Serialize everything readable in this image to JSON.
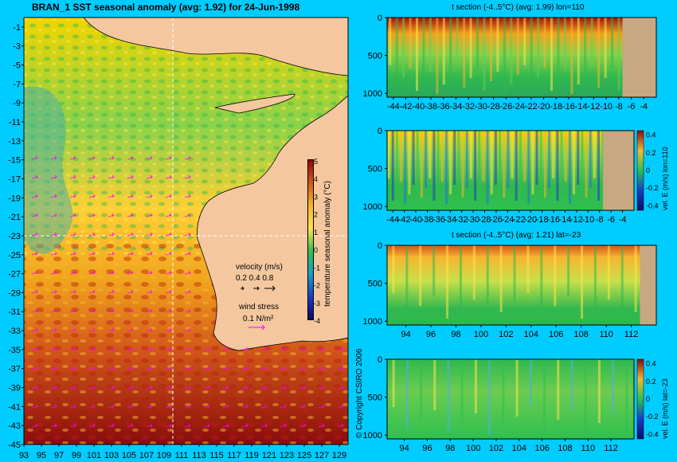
{
  "main_title": "BRAN_1 SST seasonal anomaly (avg: 1.92) for 24-Jun-1998",
  "copyright": "© Copyright CSIRO 2006",
  "colors": {
    "background": "#00ccff",
    "land": "#f4c79e",
    "ocean_mask": "#c8a882",
    "marker": "#ff00ff",
    "crosshair": "#ffffff"
  },
  "map": {
    "lat_labels": [
      "-1",
      "-3",
      "-5",
      "-7",
      "-9",
      "-11",
      "-13",
      "-15",
      "-17",
      "-19",
      "-21",
      "-23",
      "-25",
      "-27",
      "-29",
      "-31",
      "-33",
      "-35",
      "-37",
      "-39",
      "-41",
      "-43",
      "-45"
    ],
    "lon_labels": [
      "93",
      "95",
      "97",
      "99",
      "101",
      "103",
      "105",
      "107",
      "109",
      "111",
      "113",
      "115",
      "117",
      "119",
      "121",
      "123",
      "125",
      "127",
      "129"
    ],
    "colorbar_ticks": [
      "5",
      "4",
      "3",
      "2",
      "1",
      "0",
      "-1",
      "-2",
      "-3",
      "-4"
    ],
    "colorbar_label": "temperature seasonal anomaly (°C)",
    "velocity_label": "velocity (m/s)",
    "velocity_scale": "0.2 0.4 0.8",
    "wind_label": "wind stress",
    "wind_scale": "0.1 N/m²",
    "crosshair": {
      "lat": -23,
      "lon": 110
    }
  },
  "chart_data": [
    {
      "type": "heatmap",
      "title": "BRAN_1 SST seasonal anomaly (avg: 1.92) for 24-Jun-1998",
      "x": [
        93,
        95,
        97,
        99,
        101,
        103,
        105,
        107,
        109,
        111,
        113,
        115,
        117,
        119,
        121,
        123,
        125,
        127,
        129
      ],
      "y": [
        -1,
        -3,
        -5,
        -7,
        -9,
        -11,
        -13,
        -15,
        -17,
        -19,
        -21,
        -23,
        -25,
        -27,
        -29,
        -31,
        -33,
        -35,
        -37,
        -39,
        -41,
        -43,
        -45
      ],
      "xlim": [
        93,
        130
      ],
      "ylim": [
        -45,
        0
      ],
      "colorbar": {
        "label": "temperature seasonal anomaly (°C)",
        "range": [
          -4,
          5
        ]
      }
    },
    {
      "type": "heatmap",
      "title": "t section (-4..5°C) (avg: 1.99) lon=110",
      "x_ticks": [
        -44,
        -42,
        -40,
        -38,
        -36,
        -34,
        -32,
        -30,
        -28,
        -26,
        -24,
        -22,
        -20,
        -18,
        -16,
        -14,
        -12,
        -10,
        -8,
        -6,
        -4
      ],
      "y_ticks": [
        0,
        500,
        1000
      ],
      "xlim": [
        -45,
        -2
      ],
      "ylim": [
        1050,
        0
      ]
    },
    {
      "type": "heatmap",
      "title": "",
      "x_ticks": [
        -44,
        -42,
        -40,
        -38,
        -36,
        -34,
        -32,
        -30,
        -28,
        -26,
        -24,
        -22,
        -20,
        -18,
        -16,
        -14,
        -12,
        -10,
        -8,
        -6,
        -4
      ],
      "y_ticks": [
        0,
        500,
        1000
      ],
      "xlim": [
        -45,
        -2
      ],
      "ylim": [
        1050,
        0
      ],
      "colorbar": {
        "label": "vel. E (m/s) lon=110",
        "ticks": [
          "0.4",
          "0.2",
          "0",
          "-0.2",
          "-0.4"
        ],
        "range": [
          -0.45,
          0.45
        ]
      }
    },
    {
      "type": "heatmap",
      "title": "t section (-4..5°C) (avg: 1.21) lat=-23",
      "x_ticks": [
        94,
        96,
        98,
        100,
        102,
        104,
        106,
        108,
        110,
        112
      ],
      "y_ticks": [
        0,
        500,
        1000
      ],
      "xlim": [
        92.5,
        114
      ],
      "ylim": [
        1050,
        0
      ]
    },
    {
      "type": "heatmap",
      "title": "",
      "x_ticks": [
        94,
        96,
        98,
        100,
        102,
        104,
        106,
        108,
        110,
        112
      ],
      "y_ticks": [
        0,
        500,
        1000
      ],
      "xlim": [
        92.5,
        114
      ],
      "ylim": [
        1050,
        0
      ],
      "colorbar": {
        "label": "vel. E (m/s) lat=-23",
        "ticks": [
          "0.4",
          "0.2",
          "0",
          "-0.2",
          "-0.4"
        ],
        "range": [
          -0.45,
          0.45
        ]
      }
    }
  ]
}
